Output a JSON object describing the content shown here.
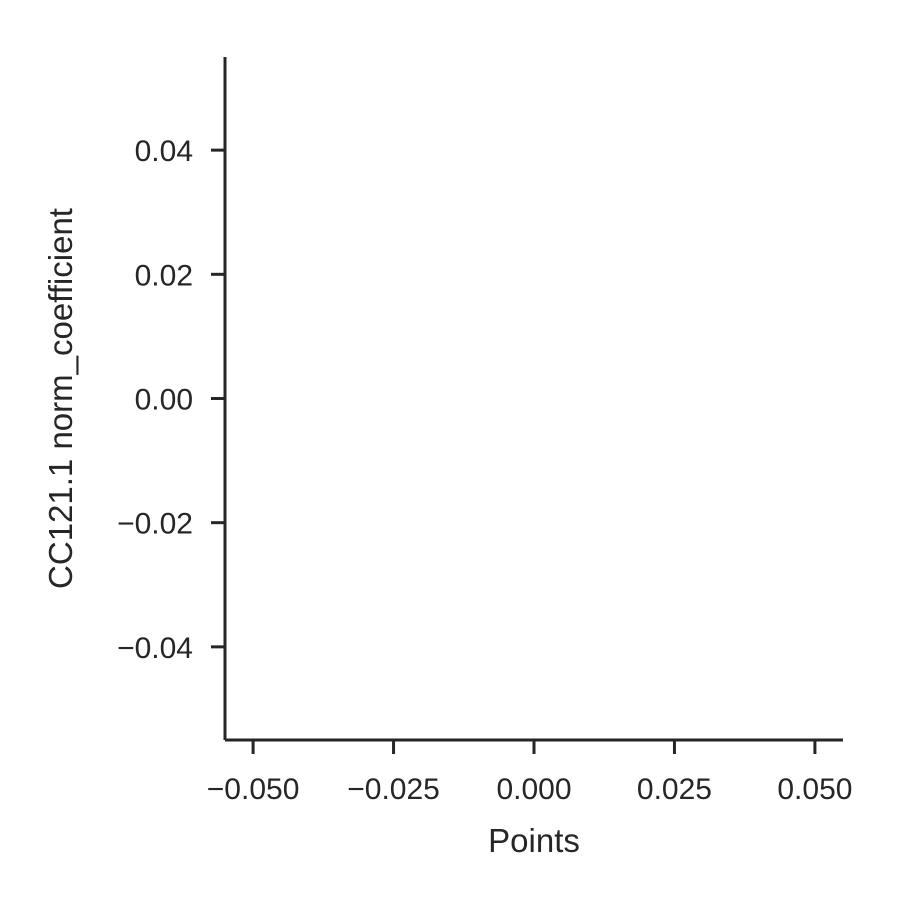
{
  "chart_data": {
    "type": "scatter",
    "title": "",
    "xlabel": "Points",
    "ylabel": "CC121.1 norm_coefficient",
    "xlim": [
      -0.055,
      0.055
    ],
    "ylim": [
      -0.055,
      0.055
    ],
    "x_ticks": [
      -0.05,
      -0.025,
      0.0,
      0.025,
      0.05
    ],
    "x_tick_labels": [
      "−0.050",
      "−0.025",
      "0.000",
      "0.025",
      "0.050"
    ],
    "y_ticks": [
      -0.04,
      -0.02,
      0.0,
      0.02,
      0.04
    ],
    "y_tick_labels": [
      "−0.04",
      "−0.02",
      "0.00",
      "0.02",
      "0.04"
    ],
    "grid": false,
    "series": [],
    "axis_color": "#262626"
  }
}
